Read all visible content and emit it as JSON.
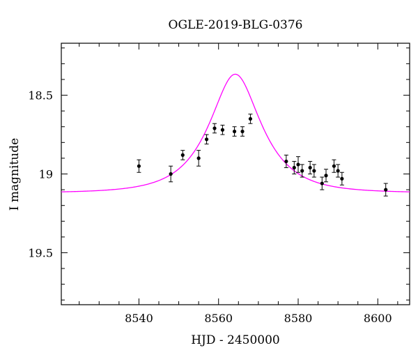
{
  "chart_data": {
    "type": "scatter",
    "title": "OGLE-2019-BLG-0376",
    "xlabel": "HJD - 2450000",
    "ylabel": "I magnitude",
    "xlim": [
      8520.5,
      8608
    ],
    "ylim": [
      18.17,
      19.83
    ],
    "y_inverted": true,
    "grid": false,
    "x_ticks": [
      {
        "value": 8540,
        "label": "8540"
      },
      {
        "value": 8560,
        "label": "8560"
      },
      {
        "value": 8580,
        "label": "8580"
      },
      {
        "value": 8600,
        "label": "8600"
      }
    ],
    "y_ticks": [
      {
        "value": 18.5,
        "label": "18.5"
      },
      {
        "value": 19.0,
        "label": "19"
      },
      {
        "value": 19.5,
        "label": "19.5"
      }
    ],
    "x_minor_step": 5,
    "y_minor_step": 0.1,
    "colors": {
      "points": "#000000",
      "model": "#ff00ff",
      "axes": "#000000"
    },
    "series": [
      {
        "kind": "points",
        "x": [
          8540.0,
          8548.0,
          8551.0,
          8555.0,
          8557.0,
          8559.0,
          8561.0,
          8564.0,
          8566.0,
          8568.0,
          8577.0,
          8579.0,
          8580.0,
          8581.0,
          8583.0,
          8584.0,
          8586.0,
          8587.0,
          8589.0,
          8590.0,
          8591.0,
          8602.0
        ],
        "y": [
          18.95,
          19.0,
          18.88,
          18.9,
          18.78,
          18.71,
          18.72,
          18.73,
          18.73,
          18.65,
          18.92,
          18.96,
          18.94,
          18.98,
          18.96,
          18.98,
          19.06,
          19.01,
          18.95,
          18.98,
          19.03,
          19.1
        ],
        "err": [
          0.04,
          0.05,
          0.03,
          0.05,
          0.03,
          0.03,
          0.03,
          0.03,
          0.03,
          0.03,
          0.04,
          0.04,
          0.05,
          0.04,
          0.04,
          0.04,
          0.04,
          0.04,
          0.04,
          0.04,
          0.04,
          0.04
        ]
      },
      {
        "kind": "model",
        "t0": 8564.2,
        "tE": 11.2,
        "u0": 0.52,
        "base_mag": 19.12,
        "fs": 0.9
      }
    ]
  }
}
